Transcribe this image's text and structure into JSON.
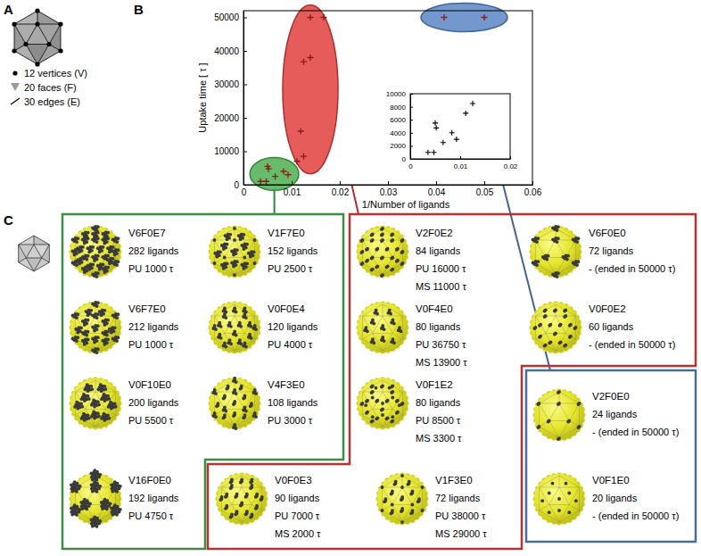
{
  "panel_labels": [
    "A",
    "B",
    "C"
  ],
  "polyhedron_legend": [
    "12 vertices (V)",
    "20 faces (F)",
    "30 edges (E)"
  ],
  "chart_data": [
    {
      "type": "scatter",
      "x_label": "1/Number of ligands",
      "y_label": "Uptake time [ τ ]",
      "marker": "plus",
      "color": "#8b1a1a",
      "xlim": [
        0,
        0.06
      ],
      "ylim": [
        0,
        52000
      ],
      "xticks": [
        0,
        0.01,
        0.02,
        0.03,
        0.04,
        0.05,
        0.06
      ],
      "yticks": [
        0,
        10000,
        20000,
        30000,
        40000,
        50000
      ],
      "series": [
        {
          "color": "#4caf50",
          "x": [
            0.00355,
            0.00472,
            0.005,
            0.00521,
            0.00658,
            0.00833,
            0.00926
          ],
          "values": [
            1000,
            1000,
            5500,
            4750,
            2500,
            4000,
            3000
          ]
        },
        {
          "color": "#e0403e",
          "x": [
            0.0119,
            0.0125,
            0.0125,
            0.01111,
            0.01389,
            0.01389,
            0.01667
          ],
          "values": [
            16000,
            36750,
            8500,
            7000,
            38000,
            50000,
            50000
          ]
        },
        {
          "color": "#5b86c4",
          "x": [
            0.04167,
            0.05
          ],
          "values": [
            50000,
            50000
          ]
        }
      ]
    },
    {
      "type": "scatter",
      "marker": "plus",
      "color": "#000000",
      "xlim": [
        0,
        0.02
      ],
      "ylim": [
        0,
        10000
      ],
      "xticks": [
        0,
        0.01,
        0.02
      ],
      "yticks": [
        0,
        2000,
        4000,
        6000,
        8000,
        10000
      ],
      "x": [
        0.00355,
        0.00472,
        0.005,
        0.00521,
        0.00658,
        0.00833,
        0.00926,
        0.01111,
        0.0125
      ],
      "values": [
        1000,
        1000,
        5500,
        4750,
        2500,
        4000,
        3000,
        7000,
        8500
      ]
    }
  ],
  "particles": [
    [
      {
        "name": "V6F0E7",
        "ligands": "282 ligands",
        "lines": [
          "PU 1000 τ"
        ]
      },
      {
        "name": "V1F7E0",
        "ligands": "152 ligands",
        "lines": [
          "PU 2500 τ"
        ]
      },
      {
        "name": "V6F7E0",
        "ligands": "212 ligands",
        "lines": [
          "PU 1000 τ"
        ]
      },
      {
        "name": "V0F0E4",
        "ligands": "120 ligands",
        "lines": [
          "PU 4000 τ"
        ]
      },
      {
        "name": "V0F10E0",
        "ligands": "200 ligands",
        "lines": [
          "PU 5500 τ"
        ]
      },
      {
        "name": "V4F3E0",
        "ligands": "108 ligands",
        "lines": [
          "PU 3000 τ"
        ]
      },
      {
        "name": "V16F0E0",
        "ligands": "192 ligands",
        "lines": [
          "PU 4750 τ"
        ]
      }
    ],
    [
      {
        "name": "V2F0E2",
        "ligands": "84 ligands",
        "lines": [
          "PU 16000 τ",
          "MS 11000 τ"
        ]
      },
      {
        "name": "V6F0E0",
        "ligands": "72 ligands",
        "lines": [
          "- (ended in 50000 τ)"
        ]
      },
      {
        "name": "V0F4E0",
        "ligands": "80 ligands",
        "lines": [
          "PU 36750 τ",
          "MS 13900 τ"
        ]
      },
      {
        "name": "V0F0E2",
        "ligands": "60 ligands",
        "lines": [
          "- (ended in 50000 τ)"
        ]
      },
      {
        "name": "V0F1E2",
        "ligands": "80 ligands",
        "lines": [
          "PU 8500 τ",
          "MS 3300 τ"
        ]
      },
      {
        "name": "V0F0E3",
        "ligands": "90 ligands",
        "lines": [
          "PU 7000 τ",
          "MS 2000 τ"
        ]
      },
      {
        "name": "V1F3E0",
        "ligands": "72 ligands",
        "lines": [
          "PU 38000 τ",
          "MS 29000 τ"
        ]
      }
    ],
    [
      {
        "name": "V2F0E0",
        "ligands": "24 ligands",
        "lines": [
          "- (ended in 50000 τ)"
        ]
      },
      {
        "name": "V0F1E0",
        "ligands": "20 ligands",
        "lines": [
          "- (ended in 50000 τ)"
        ]
      }
    ]
  ]
}
